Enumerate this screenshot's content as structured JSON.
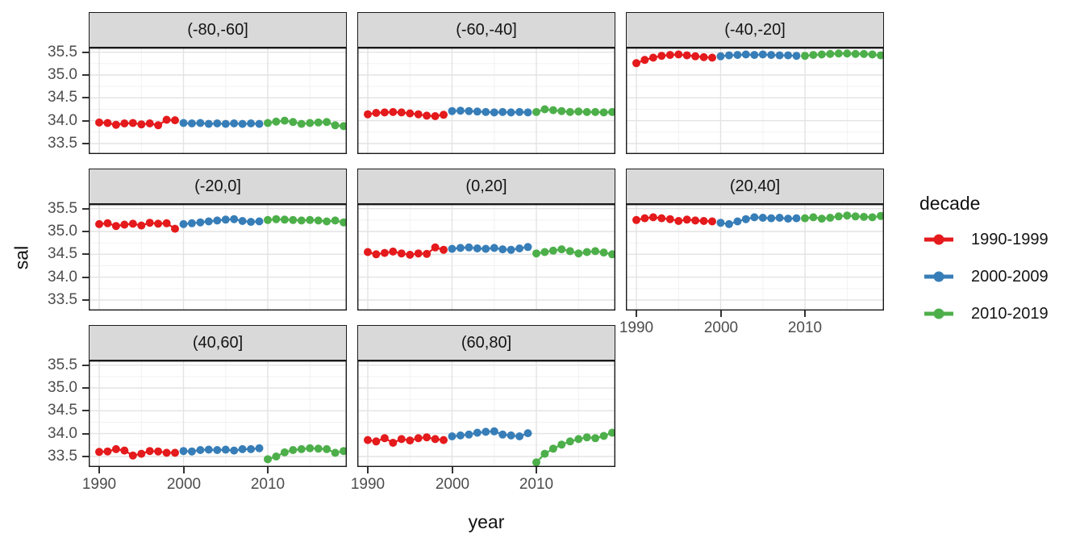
{
  "chart_data": {
    "type": "line",
    "title": "",
    "xlabel": "year",
    "ylabel": "sal",
    "x_ticks": [
      1990,
      2000,
      2010
    ],
    "x_minor": [
      1995,
      2005,
      2015
    ],
    "xlim": [
      1988.8,
      2019.4
    ],
    "y_ticks": [
      33.5,
      34.0,
      34.5,
      35.0,
      35.5
    ],
    "y_minor": [
      33.75,
      34.25,
      34.75,
      35.25
    ],
    "ylim": [
      33.27,
      35.6
    ],
    "grid": true,
    "legend": {
      "title": "decade",
      "position": "right",
      "entries": [
        {
          "label": "1990-1999",
          "color": "#E41A1C"
        },
        {
          "label": "2000-2009",
          "color": "#377EB8"
        },
        {
          "label": "2010-2019",
          "color": "#4DAF4A"
        }
      ]
    },
    "series_start_years": [
      1990,
      2000,
      2010
    ],
    "facets": [
      {
        "label": "(-80,-60]",
        "x_axis": false,
        "y_axis": true,
        "series": [
          [
            33.96,
            33.95,
            33.91,
            33.94,
            33.95,
            33.92,
            33.94,
            33.9,
            34.02,
            34.01
          ],
          [
            33.95,
            33.94,
            33.95,
            33.93,
            33.94,
            33.93,
            33.94,
            33.93,
            33.94,
            33.93
          ],
          [
            33.95,
            33.98,
            34.0,
            33.97,
            33.93,
            33.95,
            33.96,
            33.97,
            33.9,
            33.88
          ]
        ]
      },
      {
        "label": "(-60,-40]",
        "x_axis": false,
        "y_axis": false,
        "series": [
          [
            34.14,
            34.17,
            34.18,
            34.19,
            34.18,
            34.16,
            34.14,
            34.11,
            34.1,
            34.13
          ],
          [
            34.21,
            34.22,
            34.21,
            34.2,
            34.19,
            34.18,
            34.19,
            34.18,
            34.19,
            34.18
          ],
          [
            34.19,
            34.25,
            34.23,
            34.21,
            34.19,
            34.2,
            34.19,
            34.19,
            34.18,
            34.19
          ]
        ]
      },
      {
        "label": "(-40,-20]",
        "x_axis": false,
        "y_axis": false,
        "series": [
          [
            35.26,
            35.33,
            35.38,
            35.42,
            35.44,
            35.45,
            35.43,
            35.41,
            35.39,
            35.38
          ],
          [
            35.41,
            35.43,
            35.44,
            35.45,
            35.44,
            35.45,
            35.44,
            35.43,
            35.43,
            35.42
          ],
          [
            35.42,
            35.44,
            35.45,
            35.46,
            35.47,
            35.47,
            35.46,
            35.46,
            35.45,
            35.43
          ]
        ]
      },
      {
        "label": "(-20,0]",
        "x_axis": false,
        "y_axis": true,
        "series": [
          [
            35.16,
            35.18,
            35.12,
            35.15,
            35.17,
            35.13,
            35.19,
            35.17,
            35.18,
            35.06
          ],
          [
            35.16,
            35.18,
            35.2,
            35.22,
            35.24,
            35.26,
            35.27,
            35.23,
            35.21,
            35.22
          ],
          [
            35.25,
            35.27,
            35.26,
            35.25,
            35.24,
            35.25,
            35.24,
            35.22,
            35.24,
            35.2
          ]
        ]
      },
      {
        "label": "(0,20]",
        "x_axis": false,
        "y_axis": false,
        "series": [
          [
            34.55,
            34.5,
            34.53,
            34.56,
            34.52,
            34.49,
            34.52,
            34.51,
            34.65,
            34.6
          ],
          [
            34.62,
            34.64,
            34.65,
            34.63,
            34.62,
            34.64,
            34.61,
            34.6,
            34.63,
            34.66
          ],
          [
            34.52,
            34.55,
            34.58,
            34.61,
            34.57,
            34.52,
            34.55,
            34.57,
            34.54,
            34.5
          ]
        ]
      },
      {
        "label": "(20,40]",
        "x_axis": true,
        "y_axis": false,
        "series": [
          [
            35.25,
            35.29,
            35.31,
            35.29,
            35.27,
            35.23,
            35.26,
            35.24,
            35.23,
            35.22
          ],
          [
            35.19,
            35.16,
            35.22,
            35.27,
            35.31,
            35.3,
            35.29,
            35.3,
            35.28,
            35.29
          ],
          [
            35.29,
            35.31,
            35.28,
            35.3,
            35.33,
            35.35,
            35.33,
            35.32,
            35.31,
            35.34
          ]
        ]
      },
      {
        "label": "(40,60]",
        "x_axis": true,
        "y_axis": true,
        "series": [
          [
            33.6,
            33.61,
            33.66,
            33.63,
            33.52,
            33.56,
            33.62,
            33.61,
            33.58,
            33.58
          ],
          [
            33.62,
            33.61,
            33.64,
            33.65,
            33.64,
            33.65,
            33.63,
            33.66,
            33.66,
            33.68
          ],
          [
            33.44,
            33.5,
            33.59,
            33.64,
            33.66,
            33.68,
            33.67,
            33.66,
            33.58,
            33.62
          ]
        ]
      },
      {
        "label": "(60,80]",
        "x_axis": true,
        "y_axis": false,
        "series": [
          [
            33.86,
            33.83,
            33.9,
            33.8,
            33.88,
            33.85,
            33.9,
            33.92,
            33.88,
            33.86
          ],
          [
            33.94,
            33.96,
            33.98,
            34.02,
            34.04,
            34.05,
            33.98,
            33.96,
            33.94,
            34.01
          ],
          [
            33.37,
            33.56,
            33.67,
            33.76,
            33.83,
            33.88,
            33.92,
            33.9,
            33.95,
            34.02
          ]
        ]
      }
    ],
    "style": {
      "strip_bg": "#d9d9d9",
      "panel_border": "#1a1a1a",
      "grid_major": "#e3e3e3",
      "grid_minor": "#f0f0f0",
      "tick_color": "#333333",
      "tick_label_color": "#4d4d4d"
    }
  }
}
